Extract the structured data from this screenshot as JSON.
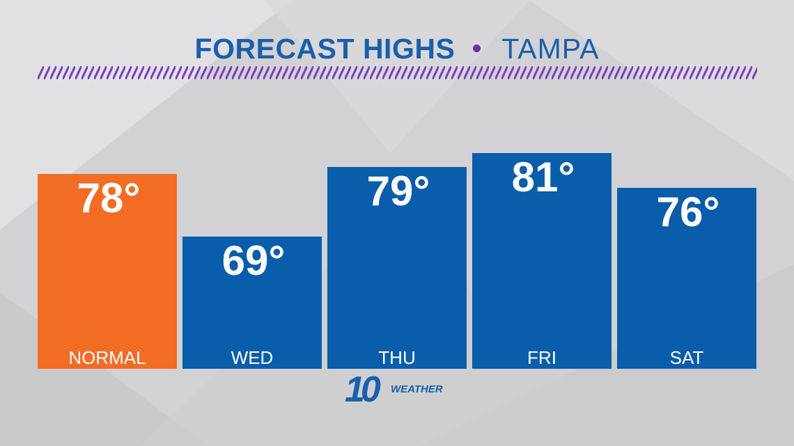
{
  "header": {
    "title": "FORECAST HIGHS",
    "subtitle": "TAMPA",
    "dot_color": "#6a2fb0",
    "hatch_color": "#7a3db8"
  },
  "chart_data": {
    "type": "bar",
    "categories": [
      "NORMAL",
      "WED",
      "THU",
      "FRI",
      "SAT"
    ],
    "values": [
      78,
      69,
      79,
      81,
      76
    ],
    "value_labels": [
      "78°",
      "69°",
      "79°",
      "81°",
      "76°"
    ],
    "colors": [
      "#f26c24",
      "#0a5dab",
      "#0a5dab",
      "#0a5dab",
      "#0a5dab"
    ],
    "title": "FORECAST HIGHS",
    "subtitle": "TAMPA",
    "xlabel": "",
    "ylabel": "",
    "ylim": [
      50,
      82
    ],
    "grid": false
  },
  "logo": {
    "number": "10",
    "text": "WEATHER",
    "color": "#1a5fab"
  }
}
